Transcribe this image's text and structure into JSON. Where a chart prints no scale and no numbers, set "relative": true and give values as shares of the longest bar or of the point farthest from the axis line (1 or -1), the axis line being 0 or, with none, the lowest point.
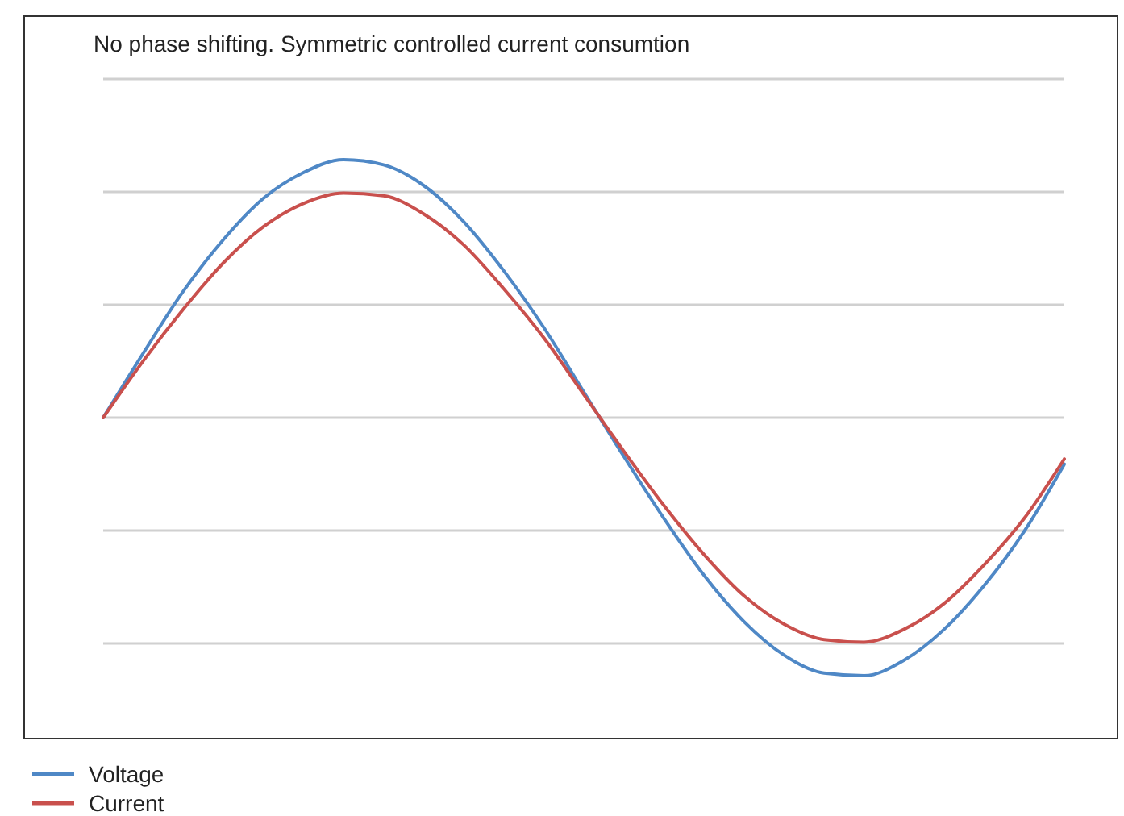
{
  "chart_data": {
    "type": "line",
    "title": "No phase shifting. Symmetric controlled current consumtion",
    "relative": true,
    "grid": true,
    "legend": "bottom left",
    "marker": "none",
    "line_style": "solid",
    "categories": [
      null,
      null,
      null,
      null,
      null,
      null,
      null,
      null,
      null,
      null,
      null,
      null,
      null,
      null,
      null,
      null,
      null,
      null,
      null,
      null,
      null,
      null,
      null,
      null,
      null
    ],
    "series": [
      {
        "name": "Voltage",
        "color": "#4f88c6",
        "values": [
          0,
          0.25,
          0.49,
          0.69,
          0.85,
          0.95,
          1,
          0.98,
          0.9,
          0.76,
          0.57,
          0.35,
          0.1,
          -0.15,
          -0.39,
          -0.61,
          -0.79,
          -0.92,
          -0.99,
          -1,
          -0.94,
          -0.82,
          -0.65,
          -0.44,
          -0.18
        ]
      },
      {
        "name": "Current",
        "color": "#c9504d",
        "values": [
          0,
          0.22,
          0.42,
          0.6,
          0.74,
          0.83,
          0.87,
          0.86,
          0.79,
          0.67,
          0.5,
          0.31,
          0.09,
          -0.13,
          -0.34,
          -0.53,
          -0.69,
          -0.8,
          -0.86,
          -0.87,
          -0.82,
          -0.72,
          -0.57,
          -0.39,
          -0.16
        ]
      }
    ]
  }
}
